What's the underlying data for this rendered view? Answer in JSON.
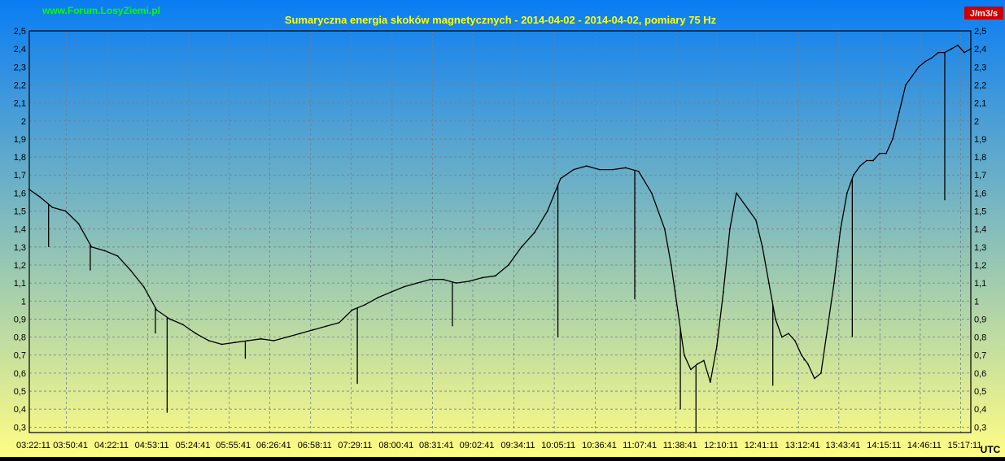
{
  "site_label": "www.Forum.LosyZiemi.pl",
  "unit_label": "J/m3/s",
  "timezone_label": "UTC",
  "colors": {
    "bg_top": "#0a7df3",
    "bg_bottom": "#fffd84",
    "title": "#ffff00",
    "site_label": "#00ff00",
    "unit_label": "#ffffff",
    "unit_label_bg": "#cc0000",
    "line": "#000000",
    "grid": "#6e7f91"
  },
  "chart_data": {
    "type": "line",
    "title": "Sumaryczna energia skoków magnetycznych - 2014-04-02 - 2014-04-02, pomiary 75 Hz",
    "xlabel": "",
    "ylabel": "",
    "ylim": [
      0.27,
      2.5
    ],
    "xlim": [
      "03:22:11",
      "15:25:00"
    ],
    "grid": true,
    "legend": "none",
    "yticks": [
      "2,5",
      "2,4",
      "2,3",
      "2,2",
      "2,1",
      "2",
      "1,9",
      "1,8",
      "1,7",
      "1,6",
      "1,5",
      "1,4",
      "1,3",
      "1,2",
      "1,1",
      "1",
      "0,9",
      "0,8",
      "0,7",
      "0,6",
      "0,5",
      "0,4",
      "0,3"
    ],
    "xticks": [
      "03:22:11",
      "03:50:41",
      "04:22:11",
      "04:53:11",
      "05:24:41",
      "05:55:41",
      "06:26:41",
      "06:58:11",
      "07:29:11",
      "08:00:41",
      "08:31:41",
      "09:02:41",
      "09:34:11",
      "10:05:11",
      "10:36:41",
      "11:07:41",
      "11:38:41",
      "12:10:11",
      "12:41:11",
      "13:12:41",
      "13:43:41",
      "14:15:11",
      "14:46:11",
      "15:17:11"
    ],
    "series": [
      {
        "x": [
          "03:22",
          "03:30",
          "03:40",
          "03:50",
          "04:00",
          "04:10",
          "04:20",
          "04:30",
          "04:40",
          "04:50",
          "05:00",
          "05:10",
          "05:20",
          "05:30",
          "05:40",
          "05:50",
          "06:00",
          "06:10",
          "06:20",
          "06:30",
          "06:40",
          "06:50",
          "07:00",
          "07:10",
          "07:20",
          "07:30",
          "07:40",
          "07:50",
          "08:00",
          "08:10",
          "08:20",
          "08:30",
          "08:40",
          "08:50",
          "09:00",
          "09:10",
          "09:20",
          "09:30",
          "09:40",
          "09:50",
          "10:00",
          "10:10",
          "10:20",
          "10:30",
          "10:40",
          "10:50",
          "11:00",
          "11:10",
          "11:20",
          "11:30",
          "11:35",
          "11:40",
          "11:45",
          "11:50",
          "11:55",
          "12:00",
          "12:05",
          "12:10",
          "12:15",
          "12:20",
          "12:25",
          "12:30",
          "12:35",
          "12:40",
          "12:45",
          "12:50",
          "12:55",
          "13:00",
          "13:05",
          "13:10",
          "13:15",
          "13:20",
          "13:25",
          "13:30",
          "13:35",
          "13:40",
          "13:45",
          "13:50",
          "13:55",
          "14:00",
          "14:05",
          "14:10",
          "14:15",
          "14:20",
          "14:25",
          "14:30",
          "14:35",
          "14:40",
          "14:45",
          "14:50",
          "14:55",
          "15:00",
          "15:05",
          "15:10",
          "15:15",
          "15:20",
          "15:25"
        ],
        "y": [
          1.62,
          1.58,
          1.52,
          1.5,
          1.43,
          1.3,
          1.28,
          1.25,
          1.17,
          1.08,
          0.95,
          0.9,
          0.87,
          0.82,
          0.78,
          0.76,
          0.77,
          0.78,
          0.79,
          0.78,
          0.8,
          0.82,
          0.84,
          0.86,
          0.88,
          0.95,
          0.98,
          1.02,
          1.05,
          1.08,
          1.1,
          1.12,
          1.12,
          1.1,
          1.11,
          1.13,
          1.14,
          1.2,
          1.3,
          1.38,
          1.5,
          1.68,
          1.73,
          1.75,
          1.73,
          1.73,
          1.74,
          1.72,
          1.6,
          1.4,
          1.2,
          0.95,
          0.7,
          0.62,
          0.65,
          0.67,
          0.55,
          0.75,
          1.05,
          1.4,
          1.6,
          1.55,
          1.5,
          1.45,
          1.3,
          1.1,
          0.9,
          0.8,
          0.82,
          0.78,
          0.7,
          0.65,
          0.57,
          0.6,
          0.85,
          1.1,
          1.4,
          1.6,
          1.7,
          1.75,
          1.78,
          1.78,
          1.82,
          1.82,
          1.9,
          2.05,
          2.2,
          2.25,
          2.3,
          2.33,
          2.35,
          2.38,
          2.38,
          2.4,
          2.42,
          2.38,
          2.4
        ]
      }
    ],
    "spikes": [
      {
        "x": "03:37",
        "y": 1.3
      },
      {
        "x": "04:09",
        "y": 1.17
      },
      {
        "x": "04:59",
        "y": 0.82
      },
      {
        "x": "05:08",
        "y": 0.38
      },
      {
        "x": "06:08",
        "y": 0.68
      },
      {
        "x": "07:34",
        "y": 0.54
      },
      {
        "x": "08:47",
        "y": 0.86
      },
      {
        "x": "10:08",
        "y": 0.8
      },
      {
        "x": "11:07",
        "y": 1.01
      },
      {
        "x": "11:42",
        "y": 0.4
      },
      {
        "x": "11:54",
        "y": 0.27
      },
      {
        "x": "12:53",
        "y": 0.53
      },
      {
        "x": "13:17",
        "y": 0.67
      },
      {
        "x": "13:54",
        "y": 0.8
      },
      {
        "x": "15:05",
        "y": 1.56
      }
    ]
  }
}
